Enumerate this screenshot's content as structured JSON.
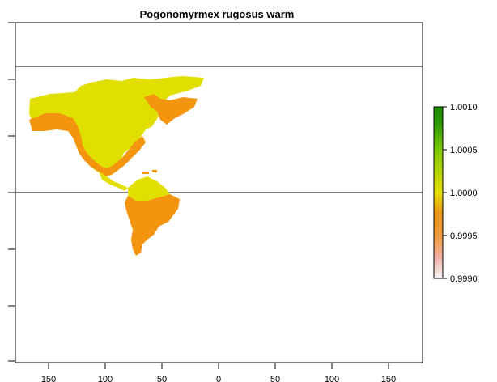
{
  "title": "Pogonomyrmex rugosus warm",
  "x_axis": {
    "tick_labels": [
      "150",
      "100",
      "50",
      "0",
      "50",
      "100",
      "150"
    ],
    "tick_lons": [
      -150,
      -100,
      -50,
      0,
      50,
      100,
      150
    ]
  },
  "reference_lines_lat": [
    66.5,
    0
  ],
  "legend": {
    "min": 0.999,
    "max": 1.001,
    "labels": [
      "1.0010",
      "1.0005",
      "1.0000",
      "0.9995",
      "0.9990"
    ],
    "label_values": [
      1.001,
      1.0005,
      1.0,
      0.9995,
      0.999
    ],
    "colors": [
      "#f2f2f2",
      "#f0b2a8",
      "#ee9a3a",
      "#e79418",
      "#e3e000",
      "#b5d400",
      "#7cc600",
      "#2f9a00",
      "#1a8a00"
    ]
  },
  "colors": {
    "suitable_high": "#e1df00",
    "suitable_low": "#f4950f",
    "frame": "#000000"
  },
  "chart_data": {
    "type": "heatmap",
    "title": "Pogonomyrmex rugosus warm",
    "xlim": [
      -180,
      180
    ],
    "ylim": [
      -90,
      90
    ],
    "value_range": [
      0.999,
      1.001
    ],
    "regions": [
      {
        "name": "North America interior and north",
        "value": 1.0
      },
      {
        "name": "North American coasts and southwest",
        "value": 0.9997
      },
      {
        "name": "Greenland",
        "value": 0.9997
      },
      {
        "name": "Northern South America",
        "value": 1.0
      },
      {
        "name": "South America south and east",
        "value": 0.9997
      }
    ]
  }
}
